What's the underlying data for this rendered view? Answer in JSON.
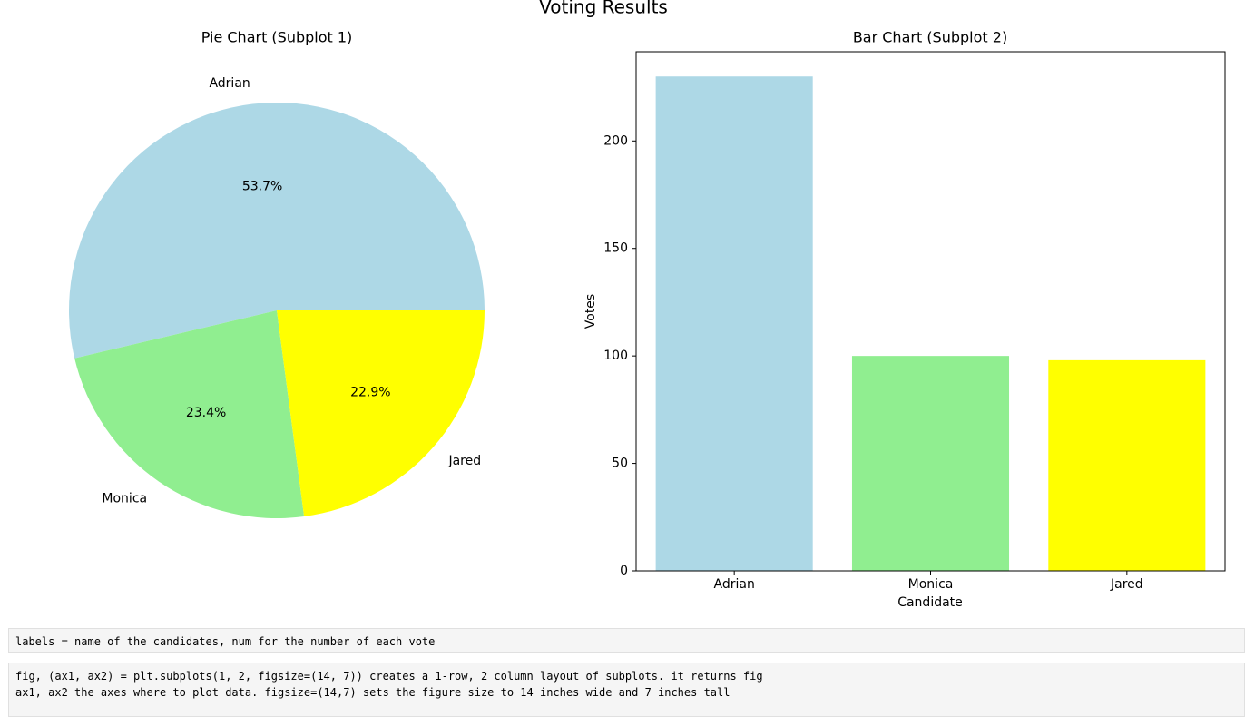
{
  "title": "Voting Results",
  "chart_data": [
    {
      "type": "pie",
      "title": "Pie Chart (Subplot 1)",
      "categories": [
        "Adrian",
        "Monica",
        "Jared"
      ],
      "values": [
        53.7,
        23.4,
        22.9
      ],
      "value_labels": [
        "53.7%",
        "23.4%",
        "22.9%"
      ],
      "colors": [
        "#add8e6",
        "#90ee90",
        "#ffff00"
      ]
    },
    {
      "type": "bar",
      "title": "Bar Chart (Subplot 2)",
      "xlabel": "Candidate",
      "ylabel": "Votes",
      "categories": [
        "Adrian",
        "Monica",
        "Jared"
      ],
      "values": [
        230,
        100,
        98
      ],
      "colors": [
        "#add8e6",
        "#90ee90",
        "#ffff00"
      ],
      "ylim": [
        0,
        241.5
      ],
      "yticks": [
        0,
        50,
        100,
        150,
        200
      ]
    }
  ],
  "cells": [
    [
      "labels = name of the candidates, num for the number of each vote"
    ],
    [
      "fig, (ax1, ax2) = plt.subplots(1, 2, figsize=(14, 7)) creates a 1-row, 2 column layout of subplots. it returns fig",
      "ax1, ax2 the axes where to plot data. figsize=(14,7) sets the figure size to 14 inches wide and 7 inches tall"
    ]
  ]
}
